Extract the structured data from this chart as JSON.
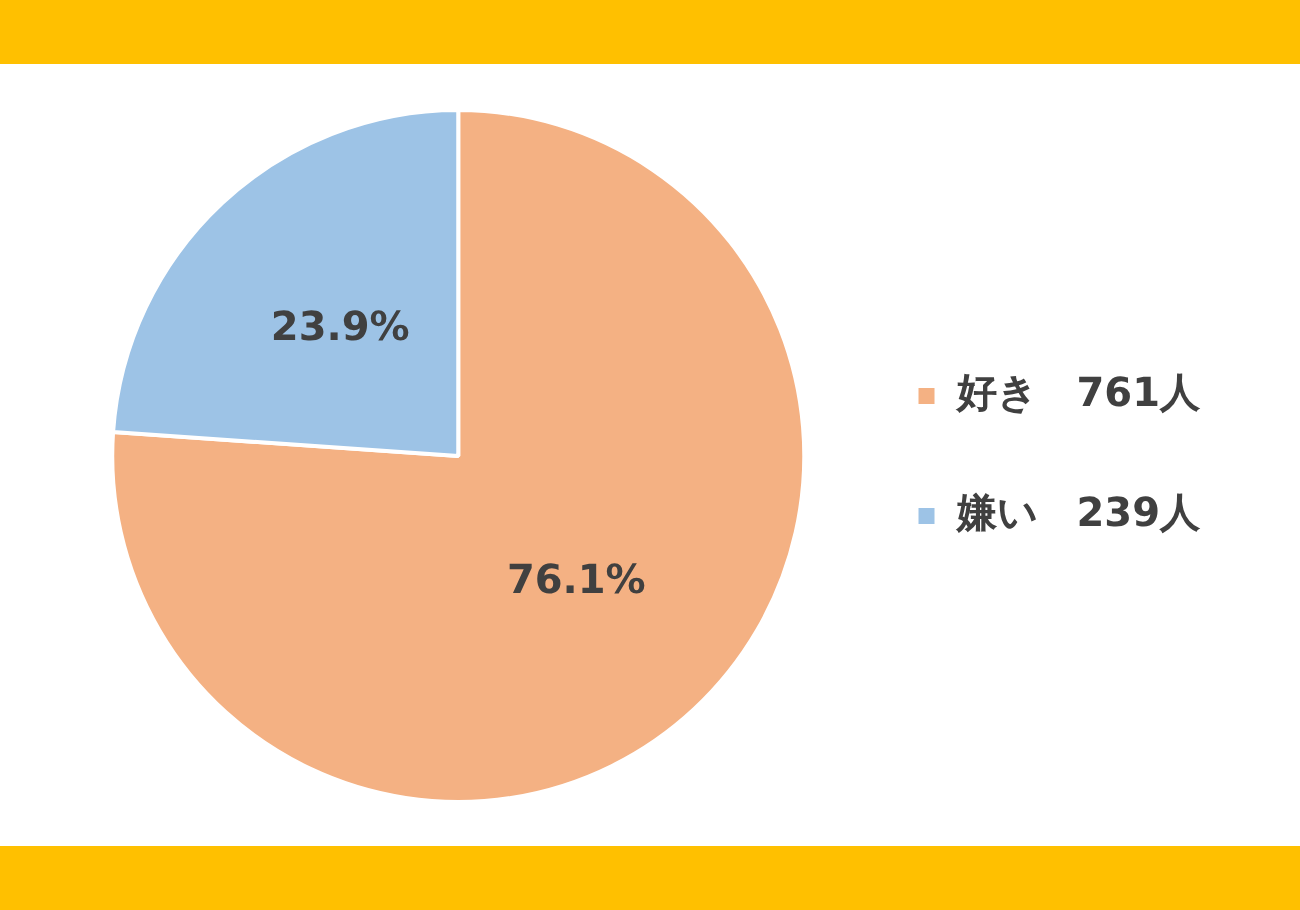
{
  "chart_data": {
    "type": "pie",
    "categories": [
      "好き　761人",
      "嫌い　239人"
    ],
    "values": [
      76.1,
      23.9
    ],
    "colors": [
      "#f4b183",
      "#9dc3e6"
    ],
    "value_labels": [
      "76.1%",
      "23.9%"
    ],
    "legend": "right"
  }
}
